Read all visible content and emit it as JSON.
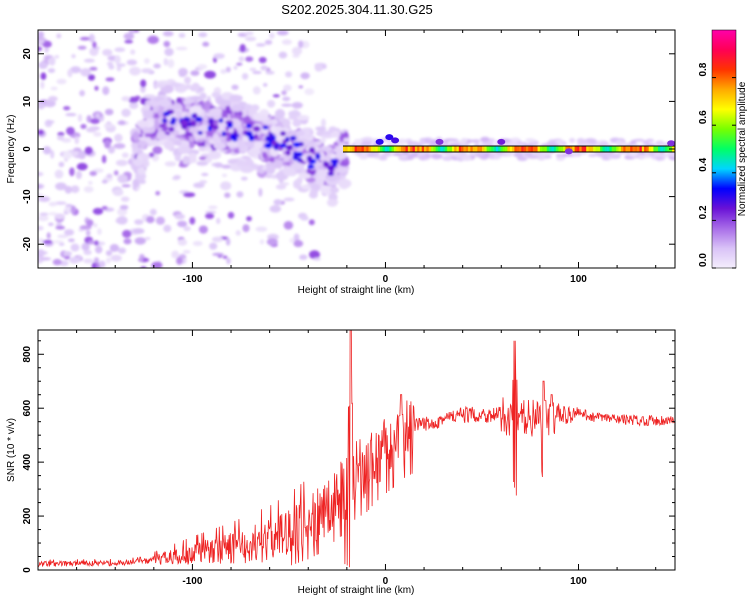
{
  "title": "S202.2025.304.11.30.G25",
  "chart_data": [
    {
      "type": "heatmap",
      "xlabel": "Height of straight line (km)",
      "ylabel": "Frequency (Hz)",
      "xlim": [
        -180,
        150
      ],
      "ylim": [
        -25,
        25
      ],
      "xticks": [
        -100,
        0,
        100
      ],
      "yticks": [
        -20,
        -10,
        0,
        10,
        20
      ],
      "colorbar": {
        "label": "Normalized spectral amplitude",
        "range": [
          0,
          1
        ],
        "ticks": [
          0.0,
          0.2,
          0.4,
          0.6,
          0.8
        ],
        "colors": [
          "#f4eefc",
          "#d9c2f7",
          "#a86ce8",
          "#6a12d6",
          "#0000ff",
          "#00d5ff",
          "#00ff66",
          "#77ff00",
          "#ffff00",
          "#ffaa00",
          "#ff3300",
          "#ff0055",
          "#ff00aa"
        ]
      },
      "ridge": [
        {
          "x": -125,
          "y": 6
        },
        {
          "x": -110,
          "y": 6
        },
        {
          "x": -95,
          "y": 5
        },
        {
          "x": -80,
          "y": 4
        },
        {
          "x": -65,
          "y": 3
        },
        {
          "x": -50,
          "y": 1
        },
        {
          "x": -35,
          "y": -3
        },
        {
          "x": -27,
          "y": -4
        },
        {
          "x": -20,
          "y": 0
        },
        {
          "x": 0,
          "y": 0.5
        },
        {
          "x": 150,
          "y": 0
        }
      ]
    },
    {
      "type": "line",
      "xlabel": "Height of straight line (km)",
      "ylabel": "SNR (10 * v/v)",
      "xlim": [
        -180,
        150
      ],
      "ylim": [
        0,
        890
      ],
      "xticks": [
        -100,
        0,
        100
      ],
      "yticks": [
        0,
        200,
        400,
        600,
        800
      ],
      "series": [
        {
          "name": "SNR",
          "color": "#ee2222",
          "x": [
            -180,
            -140,
            -120,
            -100,
            -80,
            -60,
            -50,
            -40,
            -30,
            -25,
            -20,
            -18,
            -15,
            -10,
            -5,
            0,
            5,
            10,
            15,
            20,
            30,
            40,
            50,
            60,
            66,
            68,
            70,
            75,
            80,
            84,
            88,
            95,
            100,
            110,
            130,
            150
          ],
          "y": [
            22,
            25,
            35,
            60,
            80,
            110,
            140,
            180,
            230,
            280,
            300,
            340,
            360,
            380,
            420,
            450,
            480,
            510,
            530,
            540,
            560,
            575,
            575,
            575,
            560,
            560,
            570,
            565,
            560,
            555,
            570,
            575,
            580,
            565,
            555,
            555
          ]
        }
      ],
      "spikes": [
        {
          "x": -18,
          "y": 890
        },
        {
          "x": 8,
          "y": 650
        },
        {
          "x": 67,
          "y": 850
        },
        {
          "x": 82,
          "y": 700
        },
        {
          "x": 86,
          "y": 650
        }
      ]
    }
  ]
}
